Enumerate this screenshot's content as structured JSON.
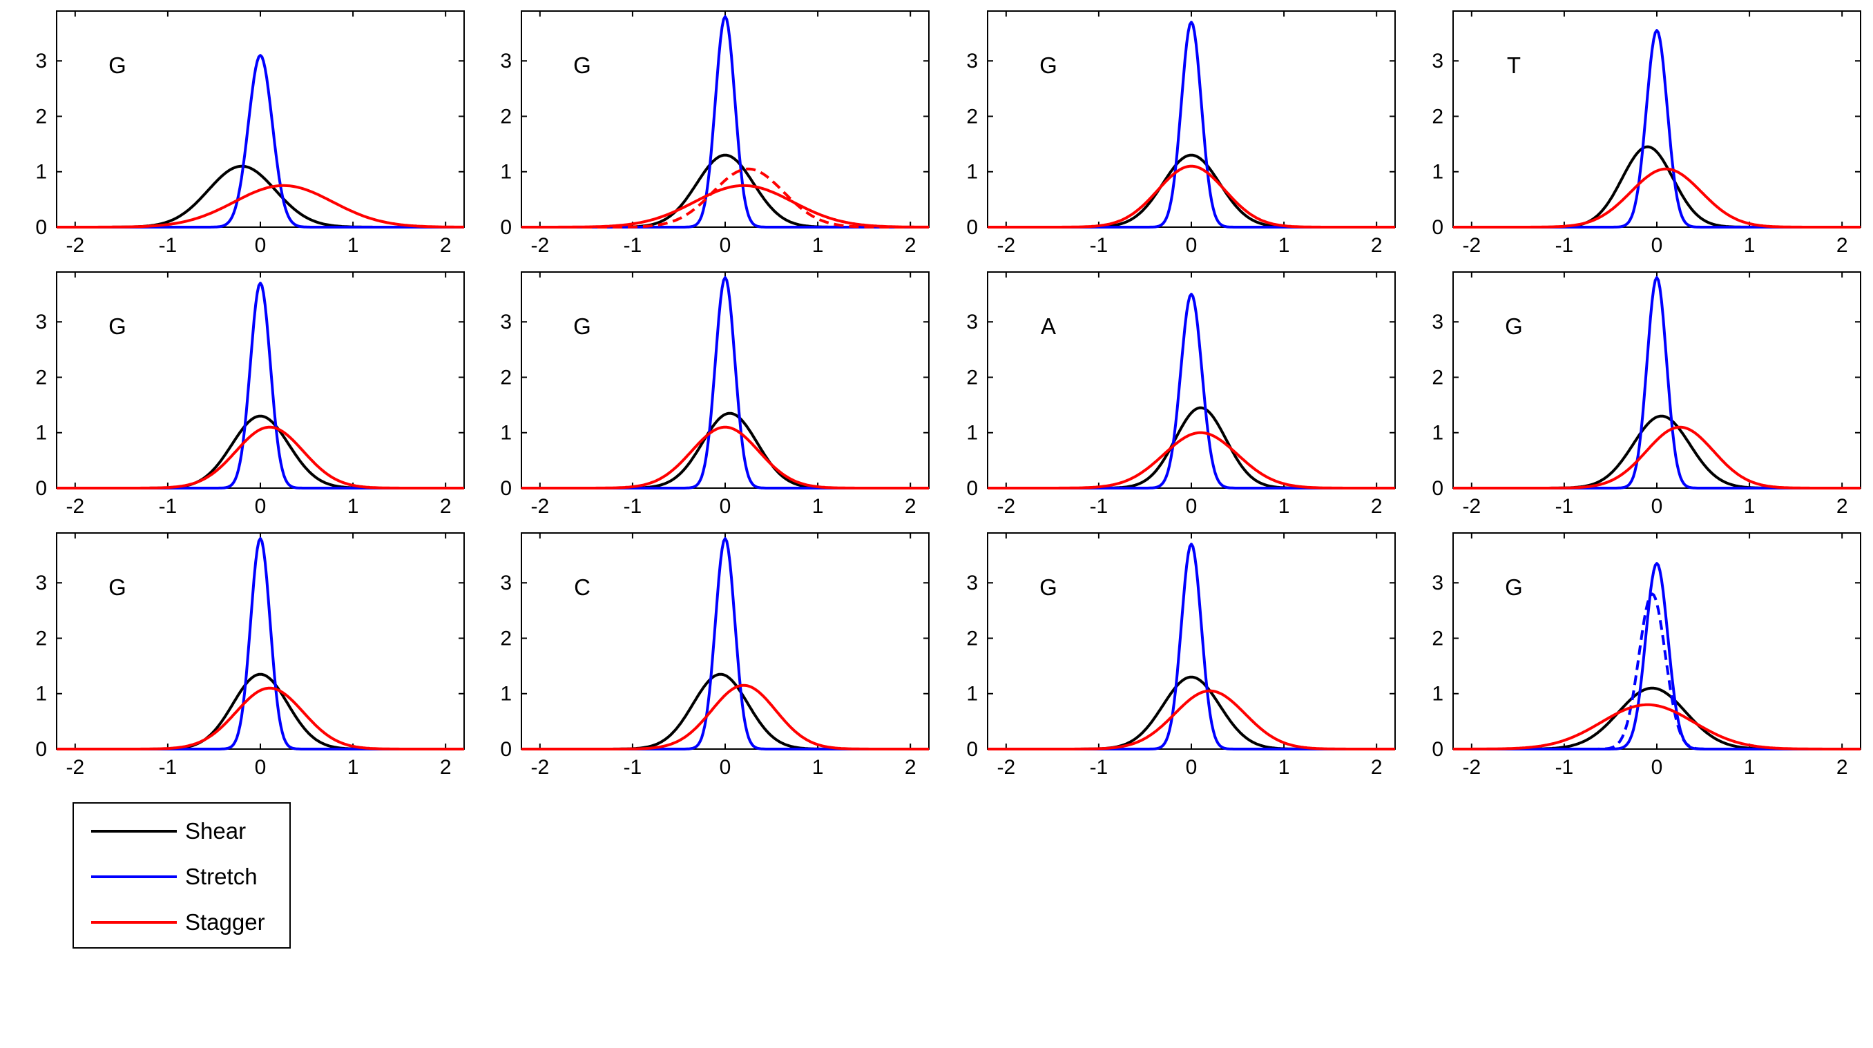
{
  "chart_data": {
    "type": "line",
    "grid": false,
    "layout": "3 rows x 4 columns of small-multiple density plots",
    "xlim": [
      -2.2,
      2.2
    ],
    "ylim": [
      0,
      3.9
    ],
    "xticks": [
      -2,
      -1,
      0,
      1,
      2
    ],
    "yticks": [
      0,
      1,
      2,
      3
    ],
    "legend": {
      "placement": "bottom-left",
      "entries": [
        {
          "label": "Shear",
          "color": "#000000"
        },
        {
          "label": "Stretch",
          "color": "#0000ff"
        },
        {
          "label": "Stagger",
          "color": "#ff0000"
        }
      ]
    },
    "colors": {
      "Shear": "#000000",
      "Stretch": "#0000ff",
      "Stagger": "#ff0000"
    },
    "panels": [
      {
        "label": "G",
        "series": [
          {
            "param": "Shear",
            "peak_x": -0.2,
            "peak_y": 1.1
          },
          {
            "param": "Stretch",
            "peak_x": 0.0,
            "peak_y": 3.1
          },
          {
            "param": "Stagger",
            "peak_x": 0.25,
            "peak_y": 0.75
          }
        ]
      },
      {
        "label": "G",
        "series": [
          {
            "param": "Shear",
            "peak_x": 0.0,
            "peak_y": 1.3
          },
          {
            "param": "Stretch",
            "peak_x": 0.0,
            "peak_y": 3.8
          },
          {
            "param": "Stagger",
            "peak_x": 0.2,
            "peak_y": 0.75
          },
          {
            "param": "Stagger",
            "style": "dashed",
            "peak_x": 0.25,
            "peak_y": 1.05
          }
        ]
      },
      {
        "label": "G",
        "series": [
          {
            "param": "Shear",
            "peak_x": 0.0,
            "peak_y": 1.3
          },
          {
            "param": "Stretch",
            "peak_x": 0.0,
            "peak_y": 3.7
          },
          {
            "param": "Stagger",
            "peak_x": 0.0,
            "peak_y": 1.1
          }
        ]
      },
      {
        "label": "T",
        "series": [
          {
            "param": "Shear",
            "peak_x": -0.1,
            "peak_y": 1.45
          },
          {
            "param": "Stretch",
            "peak_x": 0.0,
            "peak_y": 3.55
          },
          {
            "param": "Stagger",
            "peak_x": 0.1,
            "peak_y": 1.05
          }
        ]
      },
      {
        "label": "G",
        "series": [
          {
            "param": "Shear",
            "peak_x": 0.0,
            "peak_y": 1.3
          },
          {
            "param": "Stretch",
            "peak_x": 0.0,
            "peak_y": 3.7
          },
          {
            "param": "Stagger",
            "peak_x": 0.1,
            "peak_y": 1.1
          }
        ]
      },
      {
        "label": "G",
        "series": [
          {
            "param": "Shear",
            "peak_x": 0.05,
            "peak_y": 1.35
          },
          {
            "param": "Stretch",
            "peak_x": 0.0,
            "peak_y": 3.8
          },
          {
            "param": "Stagger",
            "peak_x": 0.0,
            "peak_y": 1.1
          }
        ]
      },
      {
        "label": "A",
        "series": [
          {
            "param": "Shear",
            "peak_x": 0.1,
            "peak_y": 1.45
          },
          {
            "param": "Stretch",
            "peak_x": 0.0,
            "peak_y": 3.5
          },
          {
            "param": "Stagger",
            "peak_x": 0.1,
            "peak_y": 1.0
          }
        ]
      },
      {
        "label": "G",
        "series": [
          {
            "param": "Shear",
            "peak_x": 0.05,
            "peak_y": 1.3
          },
          {
            "param": "Stretch",
            "peak_x": 0.0,
            "peak_y": 3.8
          },
          {
            "param": "Stagger",
            "peak_x": 0.25,
            "peak_y": 1.1
          }
        ]
      },
      {
        "label": "G",
        "series": [
          {
            "param": "Shear",
            "peak_x": 0.0,
            "peak_y": 1.35
          },
          {
            "param": "Stretch",
            "peak_x": 0.0,
            "peak_y": 3.8
          },
          {
            "param": "Stagger",
            "peak_x": 0.1,
            "peak_y": 1.1
          }
        ]
      },
      {
        "label": "C",
        "series": [
          {
            "param": "Shear",
            "peak_x": -0.05,
            "peak_y": 1.35
          },
          {
            "param": "Stretch",
            "peak_x": 0.0,
            "peak_y": 3.8
          },
          {
            "param": "Stagger",
            "peak_x": 0.2,
            "peak_y": 1.15
          }
        ]
      },
      {
        "label": "G",
        "series": [
          {
            "param": "Shear",
            "peak_x": 0.0,
            "peak_y": 1.3
          },
          {
            "param": "Stretch",
            "peak_x": 0.0,
            "peak_y": 3.7
          },
          {
            "param": "Stagger",
            "peak_x": 0.2,
            "peak_y": 1.05
          }
        ]
      },
      {
        "label": "G",
        "series": [
          {
            "param": "Shear",
            "peak_x": -0.05,
            "peak_y": 1.1
          },
          {
            "param": "Stretch",
            "peak_x": 0.0,
            "peak_y": 3.35
          },
          {
            "param": "Stretch",
            "style": "dashed",
            "peak_x": -0.05,
            "peak_y": 2.8
          },
          {
            "param": "Stagger",
            "peak_x": -0.1,
            "peak_y": 0.8
          }
        ]
      }
    ]
  }
}
